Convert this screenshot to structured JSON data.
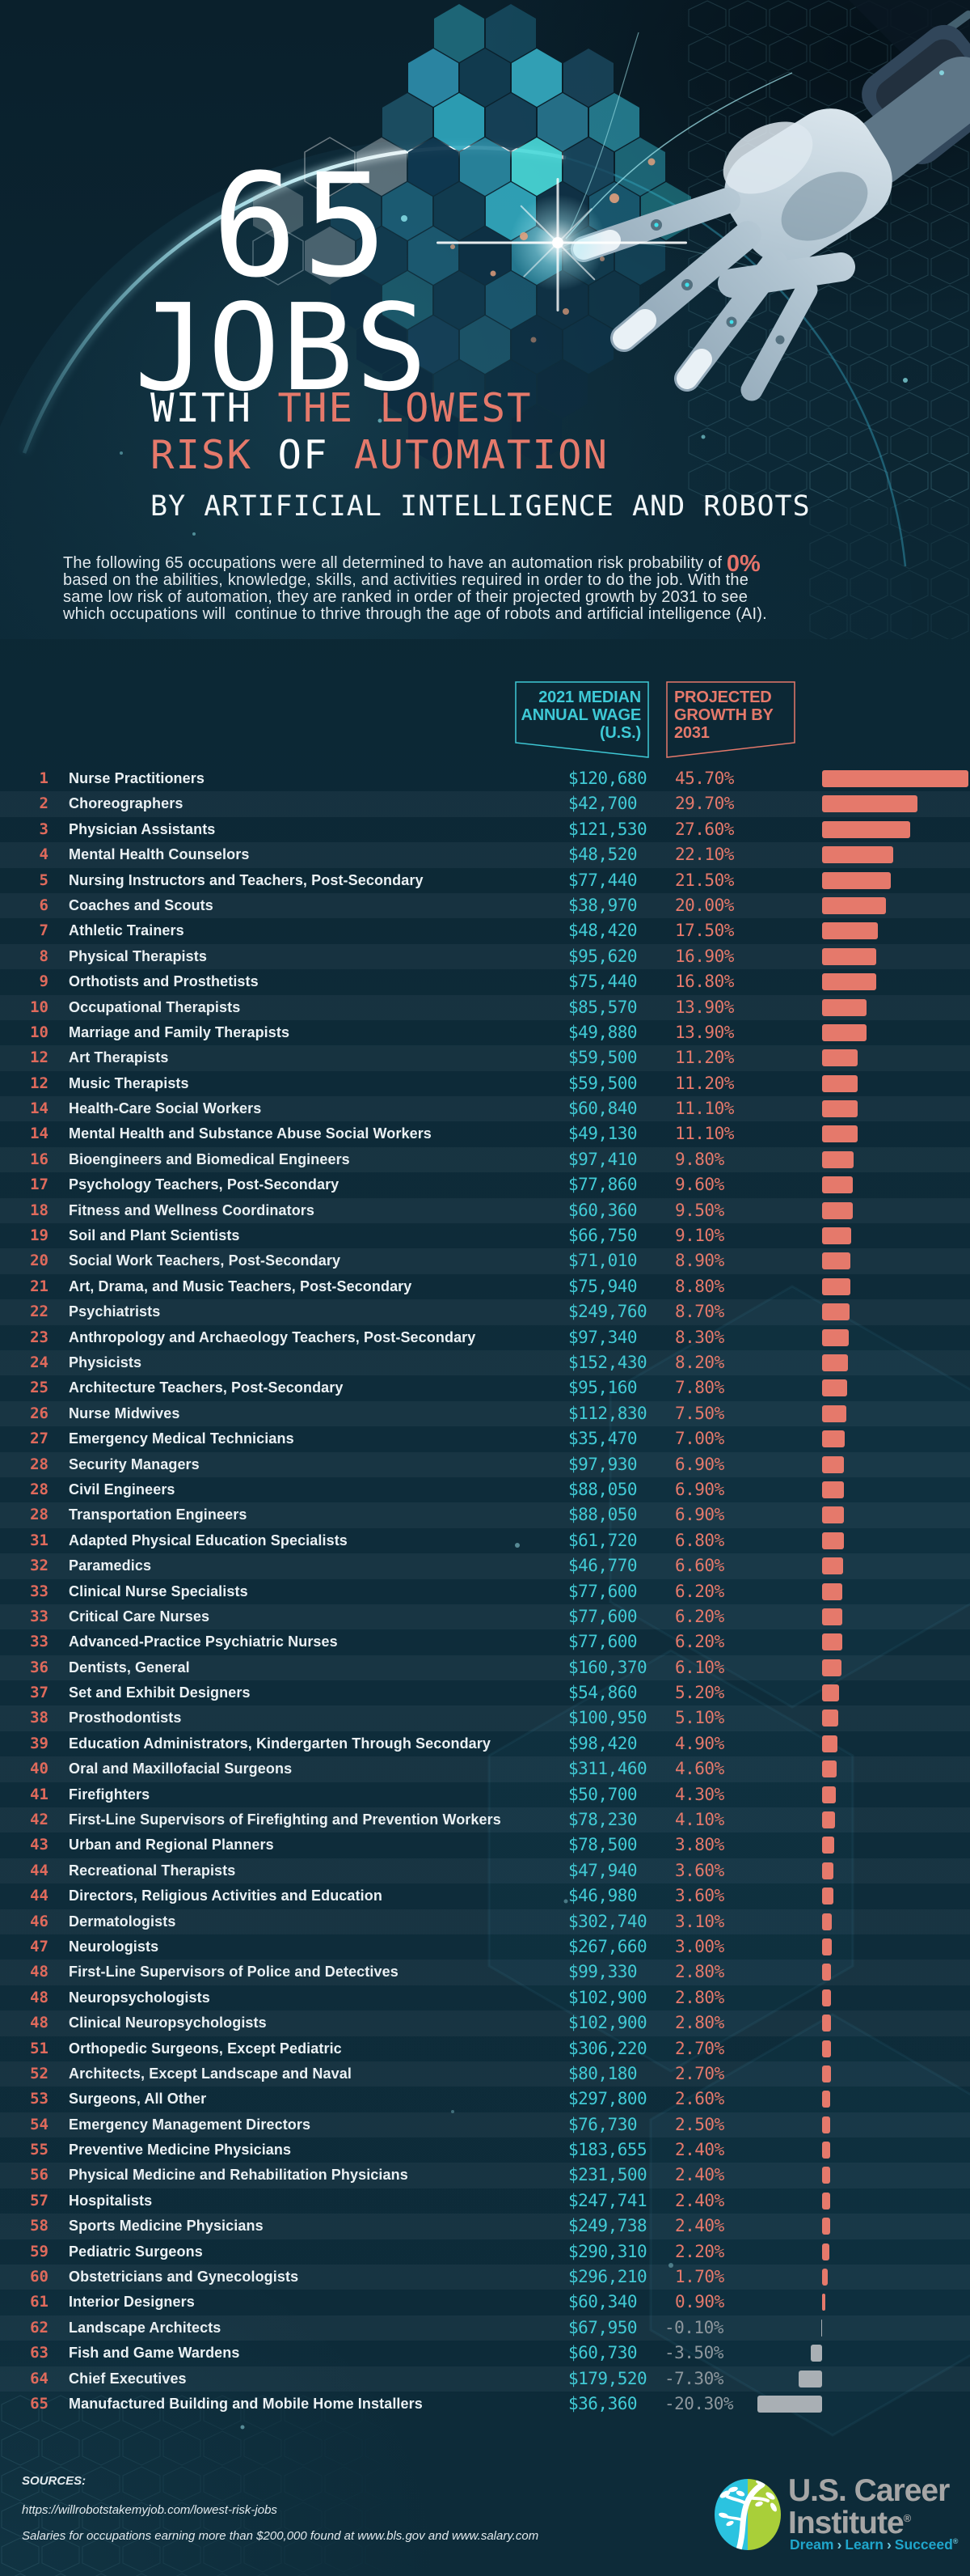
{
  "header": {
    "title_number": "65",
    "title_word": "JOBS",
    "sub1_white": "WITH ",
    "sub1_accent": "THE LOWEST",
    "sub2_accent1": "RISK ",
    "sub2_white": "OF ",
    "sub2_accent2": "AUTOMATION",
    "tagline": "BY ARTIFICIAL INTELLIGENCE AND ROBOTS"
  },
  "intro": {
    "line1_pre": "The following 65 occupations were all determined to have an automation risk probability of ",
    "line1_accent": "0%",
    "line2": "based on the abilities, knowledge, skills, and activities required in order to do the job. With the",
    "line3": "same low risk of automation, they are ranked in order of their projected growth by 2031 to see",
    "line4": "which occupations will  continue to thrive through the age of robots and artificial intelligence (AI)."
  },
  "columns": {
    "wage": [
      "2021 MEDIAN",
      "ANNUAL WAGE",
      "(U.S.)"
    ],
    "growth": [
      "PROJECTED",
      "GROWTH BY",
      "2031"
    ]
  },
  "footer": {
    "sources_label": "SOURCES:",
    "source_url": "https://willrobotstakemyjob.com/lowest-risk-jobs",
    "source_note": "Salaries for occupations earning more than $200,000 found at www.bls.gov and www.salary.com"
  },
  "logo": {
    "name_line1": "U.S. Career",
    "name_line2": "Institute",
    "registered": "®",
    "tagline": [
      "Dream",
      "Learn",
      "Succeed"
    ],
    "separator": "›"
  },
  "colors": {
    "accent_salmon": "#E5796B",
    "accent_teal": "#3EC9D6",
    "negative_gray": "#8E979D",
    "bar_positive": "#E5796B",
    "bar_negative": "#A9AFB4",
    "background": "#0D2B39"
  },
  "chart_data": {
    "type": "bar",
    "orientation": "horizontal",
    "title": "65 Jobs with the Lowest Risk of Automation by Artificial Intelligence and Robots",
    "note": "All occupations have an automation risk probability of 0%, ranked by projected growth by 2031",
    "xlim": [
      -20.3,
      45.7
    ],
    "ranks": [
      1,
      2,
      3,
      4,
      5,
      6,
      7,
      8,
      9,
      10,
      10,
      12,
      12,
      14,
      14,
      16,
      17,
      18,
      19,
      20,
      21,
      22,
      23,
      24,
      25,
      26,
      27,
      28,
      28,
      28,
      31,
      32,
      33,
      33,
      33,
      36,
      37,
      38,
      39,
      40,
      41,
      42,
      43,
      44,
      44,
      46,
      47,
      48,
      48,
      48,
      51,
      52,
      53,
      54,
      55,
      56,
      57,
      58,
      59,
      60,
      61,
      62,
      63,
      64,
      65
    ],
    "categories": [
      "Nurse Practitioners",
      "Choreographers",
      "Physician Assistants",
      "Mental Health Counselors",
      "Nursing Instructors and Teachers, Post-Secondary",
      "Coaches and Scouts",
      "Athletic Trainers",
      "Physical Therapists",
      "Orthotists and Prosthetists",
      "Occupational Therapists",
      "Marriage and Family Therapists",
      "Art Therapists",
      "Music Therapists",
      "Health-Care Social Workers",
      "Mental Health and Substance Abuse Social Workers",
      "Bioengineers and Biomedical Engineers",
      "Psychology Teachers, Post-Secondary",
      "Fitness and Wellness Coordinators",
      "Soil and Plant Scientists",
      "Social Work Teachers, Post-Secondary",
      "Art, Drama, and Music Teachers, Post-Secondary",
      "Psychiatrists",
      "Anthropology and Archaeology Teachers, Post-Secondary",
      "Physicists",
      "Architecture Teachers, Post-Secondary",
      "Nurse Midwives",
      "Emergency Medical Technicians",
      "Security Managers",
      "Civil Engineers",
      "Transportation Engineers",
      "Adapted Physical Education Specialists",
      "Paramedics",
      "Clinical Nurse Specialists",
      "Critical Care Nurses",
      "Advanced-Practice Psychiatric Nurses",
      "Dentists, General",
      "Set and Exhibit Designers",
      "Prosthodontists",
      "Education Administrators, Kindergarten Through Secondary",
      "Oral and Maxillofacial Surgeons",
      "Firefighters",
      "First-Line Supervisors of Firefighting and Prevention Workers",
      "Urban and Regional Planners",
      "Recreational Therapists",
      "Directors, Religious Activities and Education",
      "Dermatologists",
      "Neurologists",
      "First-Line Supervisors of Police and Detectives",
      "Neuropsychologists",
      "Clinical Neuropsychologists",
      "Orthopedic Surgeons, Except Pediatric",
      "Architects, Except Landscape and Naval",
      "Surgeons, All Other",
      "Emergency Management Directors",
      "Preventive Medicine Physicians",
      "Physical Medicine and Rehabilitation Physicians",
      "Hospitalists",
      "Sports Medicine Physicians",
      "Pediatric Surgeons",
      "Obstetricians and Gynecologists",
      "Interior Designers",
      "Landscape Architects",
      "Fish and Game Wardens",
      "Chief Executives",
      "Manufactured Building and Mobile Home Installers"
    ],
    "series": [
      {
        "name": "2021 Median Annual Wage (U.S.)",
        "unit": "USD",
        "values": [
          120680,
          42700,
          121530,
          48520,
          77440,
          38970,
          48420,
          95620,
          75440,
          85570,
          49880,
          59500,
          59500,
          60840,
          49130,
          97410,
          77860,
          60360,
          66750,
          71010,
          75940,
          249760,
          97340,
          152430,
          95160,
          112830,
          35470,
          97930,
          88050,
          88050,
          61720,
          46770,
          77600,
          77600,
          77600,
          160370,
          54860,
          100950,
          98420,
          311460,
          50700,
          78230,
          78500,
          47940,
          46980,
          302740,
          267660,
          99330,
          102900,
          102900,
          306220,
          80180,
          297800,
          76730,
          183655,
          231500,
          247741,
          249738,
          290310,
          296210,
          60340,
          67950,
          60730,
          179520,
          36360
        ]
      },
      {
        "name": "Projected Growth by 2031",
        "unit": "percent",
        "values": [
          45.7,
          29.7,
          27.6,
          22.1,
          21.5,
          20.0,
          17.5,
          16.9,
          16.8,
          13.9,
          13.9,
          11.2,
          11.2,
          11.1,
          11.1,
          9.8,
          9.6,
          9.5,
          9.1,
          8.9,
          8.8,
          8.7,
          8.3,
          8.2,
          7.8,
          7.5,
          7.0,
          6.9,
          6.9,
          6.9,
          6.8,
          6.6,
          6.2,
          6.2,
          6.2,
          6.1,
          5.2,
          5.1,
          4.9,
          4.6,
          4.3,
          4.1,
          3.8,
          3.6,
          3.6,
          3.1,
          3.0,
          2.8,
          2.8,
          2.8,
          2.7,
          2.7,
          2.6,
          2.5,
          2.4,
          2.4,
          2.4,
          2.4,
          2.2,
          1.7,
          0.9,
          -0.1,
          -3.5,
          -7.3,
          -20.3
        ]
      }
    ]
  }
}
